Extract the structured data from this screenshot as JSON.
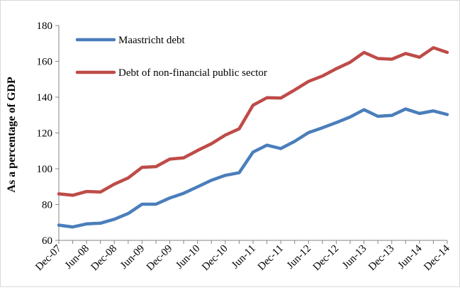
{
  "chart_data": {
    "type": "line",
    "title": "",
    "xlabel": "",
    "ylabel": "As a percentage of GDP",
    "ylim": [
      60,
      180
    ],
    "yticks": [
      60,
      80,
      100,
      120,
      140,
      160,
      180
    ],
    "grid": false,
    "legend_position": "top-left",
    "x": [
      "Dec-07",
      "Mar-08",
      "Jun-08",
      "Sep-08",
      "Dec-08",
      "Mar-09",
      "Jun-09",
      "Sep-09",
      "Dec-09",
      "Mar-10",
      "Jun-10",
      "Sep-10",
      "Dec-10",
      "Mar-11",
      "Jun-11",
      "Sep-11",
      "Dec-11",
      "Mar-12",
      "Jun-12",
      "Sep-12",
      "Dec-12",
      "Mar-13",
      "Jun-13",
      "Sep-13",
      "Dec-13",
      "Mar-14",
      "Jun-14",
      "Sep-14",
      "Dec-14"
    ],
    "xtick_labels": [
      "Dec-07",
      "Jun-08",
      "Dec-08",
      "Jun-09",
      "Dec-09",
      "Jun-10",
      "Dec-10",
      "Jun-11",
      "Dec-11",
      "Jun-12",
      "Dec-12",
      "Jun-13",
      "Dec-13",
      "Jun-14",
      "Dec-14"
    ],
    "series": [
      {
        "name": "Maastricht debt",
        "color": "#4a7ebb",
        "values": [
          68.5,
          67.5,
          69.2,
          69.6,
          71.8,
          75.0,
          80.2,
          80.2,
          83.7,
          86.3,
          89.9,
          93.6,
          96.3,
          97.8,
          109.3,
          113.2,
          111.3,
          115.3,
          120.2,
          122.9,
          125.8,
          128.9,
          133.0,
          129.3,
          129.8,
          133.4,
          130.9,
          132.3,
          130.3
        ]
      },
      {
        "name": "Debt of non-financial public sector",
        "color": "#be4b48",
        "values": [
          86.0,
          85.2,
          87.3,
          87.0,
          91.4,
          94.9,
          100.8,
          101.2,
          105.4,
          106.1,
          110.2,
          114.0,
          118.8,
          122.3,
          135.5,
          139.7,
          139.5,
          144.0,
          148.8,
          151.8,
          155.9,
          159.5,
          165.0,
          161.6,
          161.2,
          164.4,
          162.3,
          167.6,
          165.0
        ]
      }
    ]
  }
}
